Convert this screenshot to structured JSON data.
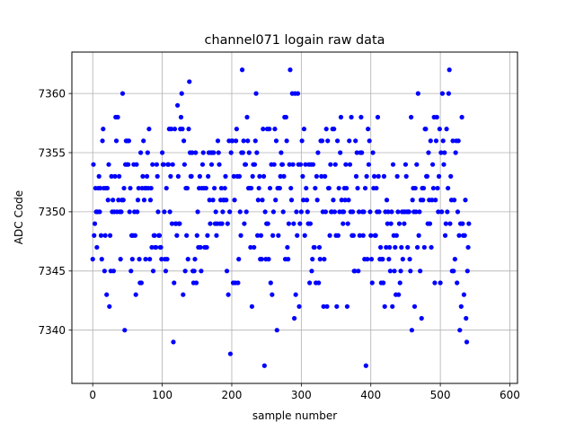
{
  "chart_data": {
    "type": "scatter",
    "title": "channel071 logain raw data",
    "xlabel": "sample number",
    "ylabel": "ADC Code",
    "xlim": [
      -30,
      611
    ],
    "ylim": [
      7335.5,
      7363.5
    ],
    "xticks": [
      0,
      100,
      200,
      300,
      400,
      500,
      600
    ],
    "yticks": [
      7340,
      7345,
      7350,
      7355,
      7360
    ],
    "grid": true,
    "marker_color": "#0000ff",
    "series": [
      {
        "values": [
          7346,
          7354,
          7348,
          7349,
          7352,
          7350,
          7347,
          7350,
          7352,
          7353,
          7350,
          7352,
          7348,
          7346,
          7356,
          7357,
          7352,
          7345,
          7348,
          7352,
          7343,
          7352,
          7351,
          7354,
          7342,
          7348,
          7345,
          7353,
          7350,
          7351,
          7345,
          7350,
          7353,
          7358,
          7356,
          7350,
          7358,
          7351,
          7353,
          7350,
          7346,
          7350,
          7351,
          7360,
          7351,
          7352,
          7340,
          7354,
          7356,
          7354,
          7356,
          7354,
          7356,
          7350,
          7352,
          7345,
          7348,
          7346,
          7348,
          7354,
          7350,
          7348,
          7343,
          7354,
          7350,
          7351,
          7352,
          7346,
          7344,
          7355,
          7344,
          7352,
          7353,
          7356,
          7351,
          7352,
          7346,
          7352,
          7353,
          7355,
          7352,
          7357,
          7346,
          7351,
          7352,
          7347,
          7354,
          7345,
          7348,
          7348,
          7347,
          7347,
          7354,
          7353,
          7350,
          7348,
          7348,
          7347,
          7347,
          7346,
          7355,
          7354,
          7354,
          7350,
          7346,
          7345,
          7352,
          7346,
          7354,
          7354,
          7357,
          7350,
          7353,
          7357,
          7349,
          7354,
          7339,
          7344,
          7357,
          7349,
          7349,
          7348,
          7359,
          7353,
          7349,
          7349,
          7357,
          7358,
          7360,
          7357,
          7343,
          7356,
          7354,
          7345,
          7352,
          7348,
          7352,
          7346,
          7357,
          7361,
          7355,
          7353,
          7353,
          7355,
          7345,
          7344,
          7345,
          7346,
          7355,
          7344,
          7348,
          7350,
          7347,
          7352,
          7353,
          7347,
          7345,
          7352,
          7354,
          7355,
          7352,
          7347,
          7347,
          7352,
          7347,
          7348,
          7353,
          7355,
          7351,
          7349,
          7355,
          7354,
          7355,
          7351,
          7355,
          7352,
          7349,
          7350,
          7348,
          7349,
          7356,
          7355,
          7354,
          7349,
          7351,
          7352,
          7349,
          7350,
          7351,
          7351,
          7352,
          7353,
          7351,
          7345,
          7349,
          7343,
          7356,
          7350,
          7338,
          7355,
          7356,
          7356,
          7344,
          7353,
          7351,
          7344,
          7356,
          7357,
          7353,
          7344,
          7346,
          7353,
          7350,
          7348,
          7355,
          7362,
          7355,
          7356,
          7349,
          7354,
          7354,
          7350,
          7358,
          7356,
          7352,
          7355,
          7352,
          7347,
          7352,
          7342,
          7353,
          7354,
          7347,
          7354,
          7356,
          7360,
          7355,
          7348,
          7351,
          7352,
          7353,
          7346,
          7348,
          7346,
          7351,
          7357,
          7353,
          7337,
          7350,
          7346,
          7349,
          7357,
          7349,
          7346,
          7357,
          7352,
          7344,
          7354,
          7343,
          7348,
          7350,
          7354,
          7357,
          7351,
          7356,
          7340,
          7352,
          7348,
          7352,
          7352,
          7353,
          7355,
          7354,
          7354,
          7350,
          7353,
          7358,
          7346,
          7358,
          7356,
          7347,
          7346,
          7349,
          7354,
          7362,
          7352,
          7351,
          7360,
          7354,
          7349,
          7341,
          7360,
          7343,
          7350,
          7348,
          7360,
          7354,
          7342,
          7349,
          7354,
          7350,
          7356,
          7353,
          7351,
          7357,
          7348,
          7354,
          7352,
          7351,
          7350,
          7349,
          7354,
          7344,
          7349,
          7354,
          7345,
          7346,
          7354,
          7347,
          7347,
          7352,
          7344,
          7353,
          7351,
          7355,
          7344,
          7347,
          7346,
          7356,
          7353,
          7356,
          7350,
          7342,
          7346,
          7353,
          7350,
          7357,
          7342,
          7356,
          7352,
          7352,
          7348,
          7354,
          7350,
          7350,
          7357,
          7351,
          7357,
          7350,
          7354,
          7348,
          7342,
          7356,
          7348,
          7352,
          7350,
          7355,
          7358,
          7351,
          7350,
          7349,
          7350,
          7352,
          7351,
          7354,
          7352,
          7342,
          7349,
          7351,
          7356,
          7354,
          7350,
          7358,
          7348,
          7350,
          7348,
          7345,
          7345,
          7356,
          7353,
          7355,
          7352,
          7345,
          7350,
          7348,
          7355,
          7358,
          7355,
          7350,
          7348,
          7350,
          7346,
          7352,
          7337,
          7353,
          7346,
          7357,
          7354,
          7356,
          7350,
          7348,
          7346,
          7344,
          7355,
          7352,
          7353,
          7348,
          7348,
          7352,
          7350,
          7358,
          7353,
          7350,
          7346,
          7347,
          7344,
          7346,
          7346,
          7344,
          7353,
          7342,
          7350,
          7347,
          7351,
          7349,
          7350,
          7346,
          7347,
          7345,
          7349,
          7350,
          7342,
          7354,
          7348,
          7345,
          7347,
          7343,
          7348,
          7353,
          7350,
          7343,
          7349,
          7344,
          7345,
          7347,
          7350,
          7346,
          7350,
          7349,
          7350,
          7354,
          7353,
          7350,
          7347,
          7350,
          7350,
          7346,
          7345,
          7358,
          7340,
          7351,
          7352,
          7350,
          7342,
          7352,
          7350,
          7354,
          7347,
          7360,
          7348,
          7350,
          7345,
          7351,
          7341,
          7352,
          7351,
          7352,
          7347,
          7357,
          7357,
          7353,
          7353,
          7349,
          7355,
          7351,
          7349,
          7356,
          7347,
          7351,
          7354,
          7352,
          7358,
          7344,
          7351,
          7356,
          7358,
          7352,
          7350,
          7353,
          7357,
          7344,
          7355,
          7350,
          7360,
          7356,
          7354,
          7355,
          7348,
          7349,
          7357,
          7350,
          7352,
          7360,
          7362,
          7349,
          7353,
          7351,
          7345,
          7356,
          7345,
          7351,
          7346,
          7355,
          7356,
          7344,
          7350,
          7356,
          7348,
          7340,
          7349,
          7342,
          7358,
          7349,
          7348,
          7343,
          7348,
          7351,
          7341,
          7339,
          7345,
          7347,
          7349
        ]
      }
    ]
  }
}
